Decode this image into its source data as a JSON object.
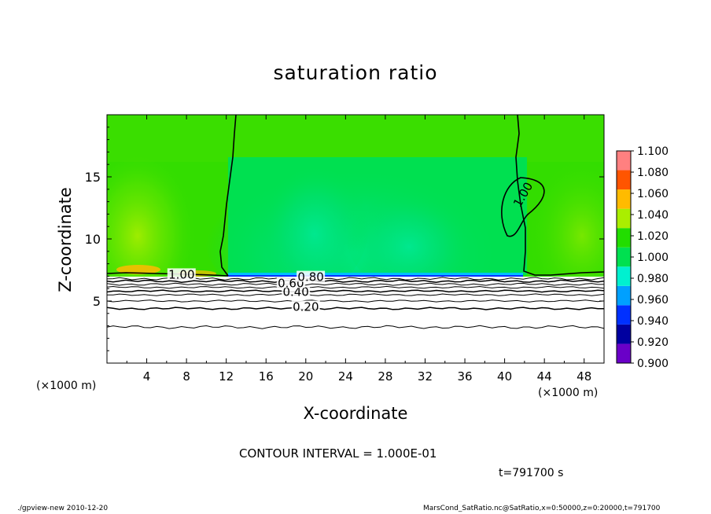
{
  "chart_data": {
    "type": "heatmap",
    "title": "saturation ratio",
    "xlabel": "X-coordinate",
    "ylabel": "Z-coordinate",
    "x_unit": "(×1000 m)",
    "xlim": [
      0,
      50
    ],
    "ylim": [
      0,
      20
    ],
    "x_ticks": [
      4,
      8,
      12,
      16,
      20,
      24,
      28,
      32,
      36,
      40,
      44,
      48
    ],
    "y_ticks": [
      5,
      10,
      15
    ],
    "colorbar": {
      "levels": [
        0.9,
        0.92,
        0.94,
        0.96,
        0.98,
        1.0,
        1.02,
        1.04,
        1.06,
        1.08,
        1.1
      ],
      "labels": [
        "0.900",
        "0.920",
        "0.940",
        "0.960",
        "0.980",
        "1.000",
        "1.020",
        "1.040",
        "1.060",
        "1.080",
        "1.100"
      ],
      "colors": [
        "#6a00c8",
        "#0000a0",
        "#0030ff",
        "#00a0ff",
        "#00f0d0",
        "#00e050",
        "#22dd00",
        "#aaee00",
        "#ffbb00",
        "#ff5500",
        "#ff8080"
      ]
    },
    "contour_labels": [
      {
        "text": "0.20",
        "x": 20,
        "z": 4.4
      },
      {
        "text": "0.40",
        "x": 19,
        "z": 5.6
      },
      {
        "text": "0.60",
        "x": 18.5,
        "z": 6.3
      },
      {
        "text": "0.80",
        "x": 20.5,
        "z": 6.8
      },
      {
        "text": "1.00",
        "x": 7.5,
        "z": 7.0
      },
      {
        "text": "1.00",
        "x": 42,
        "z": 13.5
      }
    ],
    "contour_interval": "CONTOUR INTERVAL = 1.000E-01",
    "time": "t=791700 s"
  },
  "footer": {
    "left": "./gpview-new 2010-12-20",
    "right": "MarsCond_SatRatio.nc@SatRatio,x=0:50000,z=0:20000,t=791700"
  }
}
